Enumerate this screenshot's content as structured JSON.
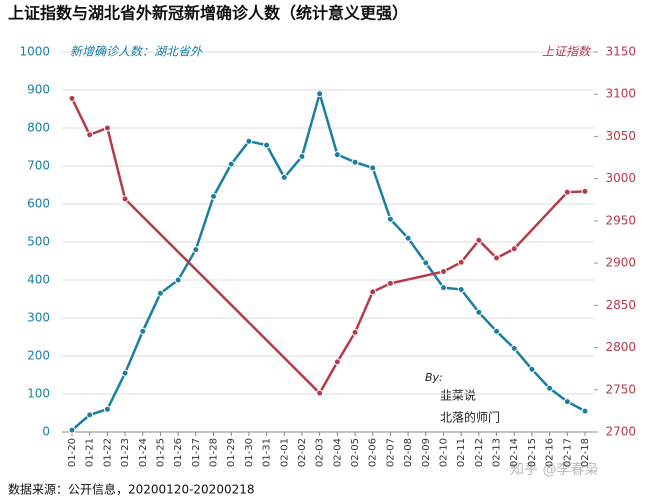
{
  "chart_data": {
    "type": "line",
    "title": "上证指数与湖北省外新冠新增确诊人数（统计意义更强）",
    "source": "数据来源：公开信息，20200120-20200218",
    "annotations": [
      "By:",
      "韭菜说",
      "北落的师门",
      "知乎 @李春枭"
    ],
    "categories": [
      "01-20",
      "01-21",
      "01-22",
      "01-23",
      "01-24",
      "01-25",
      "01-26",
      "01-27",
      "01-28",
      "01-29",
      "01-30",
      "01-31",
      "02-01",
      "02-02",
      "02-03",
      "02-04",
      "02-05",
      "02-06",
      "02-07",
      "02-08",
      "02-09",
      "02-10",
      "02-11",
      "02-12",
      "02-13",
      "02-14",
      "02-15",
      "02-16",
      "02-17",
      "02-18"
    ],
    "ylim": [
      0,
      1000
    ],
    "yticks": [
      0,
      100,
      200,
      300,
      400,
      500,
      600,
      700,
      800,
      900,
      1000
    ],
    "y2lim": [
      2700,
      3150
    ],
    "y2ticks": [
      2700,
      2750,
      2800,
      2850,
      2900,
      2950,
      3000,
      3050,
      3100,
      3150
    ],
    "grid": true,
    "series": [
      {
        "name": "新增确诊人数：湖北省外",
        "color": "#1a7fa0",
        "values": [
          5,
          45,
          60,
          155,
          265,
          365,
          400,
          480,
          620,
          705,
          765,
          755,
          670,
          725,
          890,
          730,
          710,
          695,
          560,
          510,
          445,
          380,
          375,
          315,
          265,
          220,
          165,
          115,
          80,
          55
        ]
      },
      {
        "name": "上证指数",
        "color": "#b53a4a",
        "axis": "y2",
        "x": [
          "01-20",
          "01-21",
          "01-22",
          "01-23",
          "02-03",
          "02-04",
          "02-05",
          "02-06",
          "02-07",
          "02-10",
          "02-11",
          "02-12",
          "02-13",
          "02-14",
          "02-17",
          "02-18"
        ],
        "values": [
          3095,
          3052,
          3060,
          2976,
          2746,
          2783,
          2818,
          2866,
          2876,
          2890,
          2901,
          2927,
          2906,
          2917,
          2984,
          2985
        ]
      }
    ]
  }
}
